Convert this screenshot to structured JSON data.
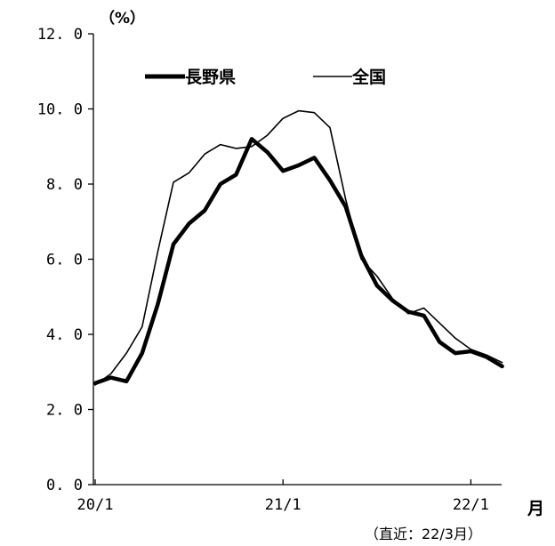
{
  "chart_data": {
    "type": "line",
    "unit_label": "（%）",
    "x_unit_label": "月",
    "note": "（直近：22/3月）",
    "ylim": [
      0,
      12
    ],
    "yticks": [
      "0.0",
      "2.0",
      "4.0",
      "6.0",
      "8.0",
      "10.0",
      "12.0"
    ],
    "xticks": [
      {
        "label": "20/1",
        "index": 0
      },
      {
        "label": "21/1",
        "index": 12
      },
      {
        "label": "22/1",
        "index": 24
      }
    ],
    "x": [
      "20/1",
      "20/2",
      "20/3",
      "20/4",
      "20/5",
      "20/6",
      "20/7",
      "20/8",
      "20/9",
      "20/10",
      "20/11",
      "20/12",
      "21/1",
      "21/2",
      "21/3",
      "21/4",
      "21/5",
      "21/6",
      "21/7",
      "21/8",
      "21/9",
      "21/10",
      "21/11",
      "21/12",
      "22/1",
      "22/2",
      "22/3"
    ],
    "series": [
      {
        "name": "長野県",
        "style": "bold",
        "values": [
          2.7,
          2.85,
          2.75,
          3.5,
          4.8,
          6.4,
          6.95,
          7.3,
          8.0,
          8.25,
          9.2,
          8.85,
          8.35,
          8.5,
          8.7,
          8.1,
          7.4,
          6.1,
          5.3,
          4.9,
          4.6,
          4.5,
          3.8,
          3.5,
          3.55,
          3.4,
          3.15
        ]
      },
      {
        "name": "全国",
        "style": "thin",
        "values": [
          2.65,
          2.95,
          3.5,
          4.2,
          6.2,
          8.05,
          8.3,
          8.8,
          9.05,
          8.95,
          9.0,
          9.3,
          9.75,
          9.95,
          9.9,
          9.5,
          7.6,
          6.0,
          5.55,
          4.95,
          4.55,
          4.7,
          4.3,
          3.9,
          3.6,
          3.45,
          3.25
        ]
      }
    ]
  }
}
